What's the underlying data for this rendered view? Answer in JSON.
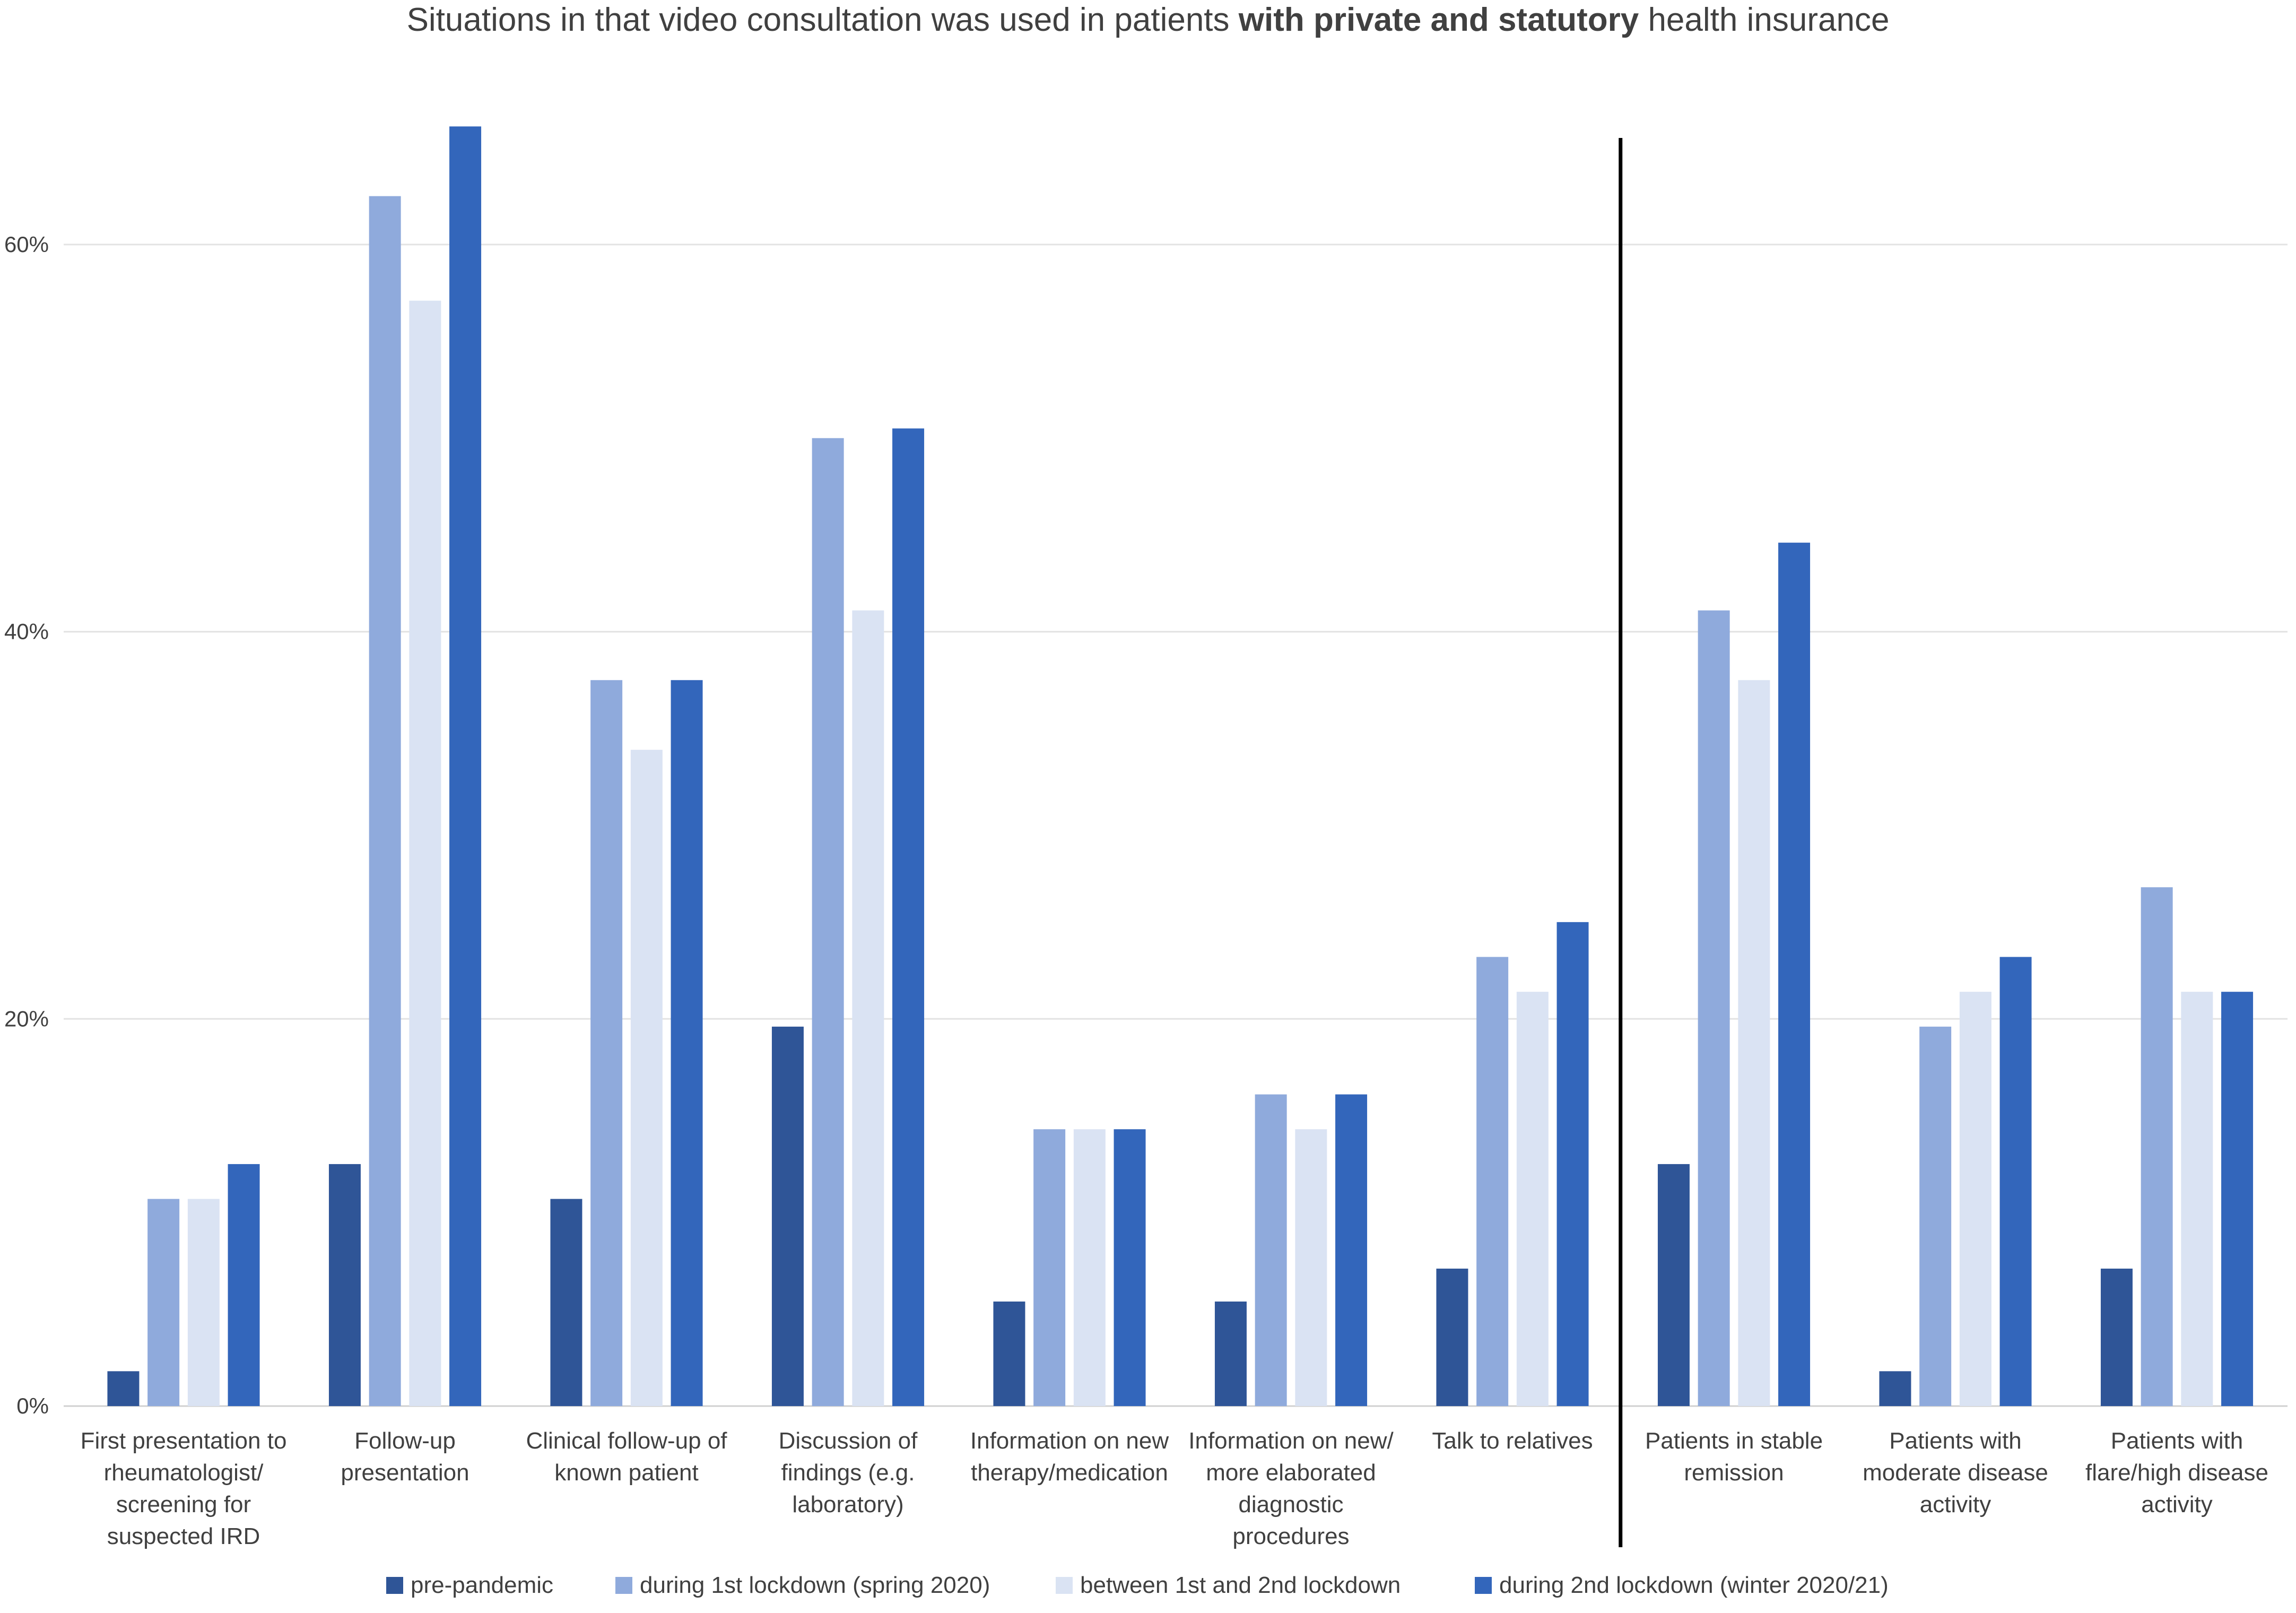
{
  "chart_data": {
    "type": "bar",
    "title_parts": [
      {
        "text": "Situations in that video consultation was used in patients ",
        "bold": false
      },
      {
        "text": "with private and statutory",
        "bold": true
      },
      {
        "text": " health insurance",
        "bold": false
      }
    ],
    "ylim": [
      0,
      70
    ],
    "yticks": [
      0,
      20,
      40,
      60
    ],
    "ytick_labels": [
      "0%",
      "20%",
      "40%",
      "60%"
    ],
    "categories": [
      [
        "First presentation to",
        "rheumatologist/",
        "screening for",
        "suspected IRD"
      ],
      [
        "Follow-up",
        "presentation"
      ],
      [
        "Clinical follow-up of",
        "known patient"
      ],
      [
        "Discussion of",
        "findings (e.g.",
        "laboratory)"
      ],
      [
        "Information on new",
        "therapy/medication"
      ],
      [
        "Information on new/",
        "more elaborated",
        "diagnostic",
        "procedures"
      ],
      [
        "Talk to relatives"
      ],
      [
        "Patients in stable",
        "remission"
      ],
      [
        "Patients with",
        "moderate disease",
        "activity"
      ],
      [
        "Patients with",
        "flare/high disease",
        "activity"
      ]
    ],
    "series": [
      {
        "name": "pre-pandemic",
        "color": "#2F5597",
        "values": [
          1.8,
          12.5,
          10.7,
          19.6,
          5.4,
          5.4,
          7.1,
          12.5,
          1.8,
          7.1
        ]
      },
      {
        "name": "during 1st lockdown (spring 2020)",
        "color": "#8FAADC",
        "values": [
          10.7,
          62.5,
          37.5,
          50.0,
          14.3,
          16.1,
          23.2,
          41.1,
          19.6,
          26.8
        ]
      },
      {
        "name": "between 1st and 2nd lockdown",
        "color": "#DAE3F3",
        "values": [
          10.7,
          57.1,
          33.9,
          41.1,
          14.3,
          14.3,
          21.4,
          37.5,
          21.4,
          21.4
        ]
      },
      {
        "name": "during 2nd lockdown (winter 2020/21)",
        "color": "#3366BB",
        "values": [
          12.5,
          66.1,
          37.5,
          50.5,
          14.3,
          16.1,
          25.0,
          44.6,
          23.2,
          21.4
        ]
      }
    ],
    "separator_after_category": 6,
    "grid": true,
    "legend_position": "bottom"
  }
}
